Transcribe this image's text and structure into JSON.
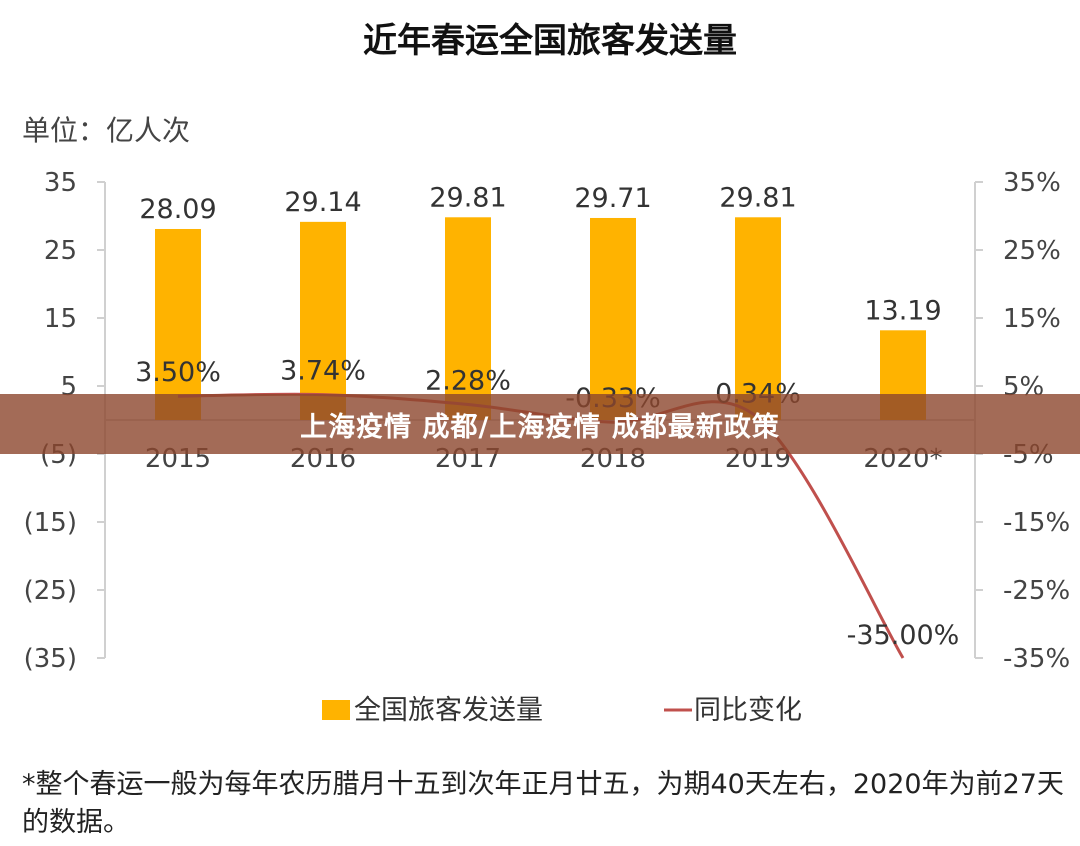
{
  "chart_data": {
    "type": "bar",
    "title": "近年春运全国旅客发送量",
    "unit_label": "单位：亿人次",
    "categories": [
      "2015",
      "2016",
      "2017",
      "2018",
      "2019",
      "2020*"
    ],
    "series": [
      {
        "name": "全国旅客发送量",
        "type": "bar",
        "axis": "left",
        "color": "#FFB300",
        "values": [
          28.09,
          29.14,
          29.81,
          29.71,
          29.81,
          13.19
        ],
        "labels": [
          "28.09",
          "29.14",
          "29.81",
          "29.71",
          "29.81",
          "13.19"
        ]
      },
      {
        "name": "同比变化",
        "type": "line",
        "axis": "right",
        "color": "#C0504D",
        "values": [
          3.5,
          3.74,
          2.28,
          -0.33,
          0.34,
          -35.0
        ],
        "labels": [
          "3.50%",
          "3.74%",
          "2.28%",
          "-0.33%",
          "0.34%",
          "-35.00%"
        ]
      }
    ],
    "y_left": {
      "ylim": [
        -35,
        35
      ],
      "ticks": [
        35,
        25,
        15,
        5,
        -5,
        -15,
        -25,
        -35
      ],
      "tick_labels": [
        "35",
        "25",
        "15",
        "5",
        "(5)",
        "(15)",
        "(25)",
        "(35)"
      ]
    },
    "y_right": {
      "ylim": [
        -35,
        35
      ],
      "ticks": [
        35,
        25,
        15,
        5,
        -5,
        -15,
        -25,
        -35
      ],
      "tick_labels": [
        "35%",
        "25%",
        "15%",
        "5%",
        "-5%",
        "-15%",
        "-25%",
        "-35%"
      ]
    },
    "legend_position": "bottom",
    "footnote": "*整个春运一般为每年农历腊月十五到次年正月廿五，为期40天左右，2020年为前27天的数据。"
  },
  "overlay": {
    "banner_text": "上海疫情 成都/上海疫情 成都最新政策"
  }
}
